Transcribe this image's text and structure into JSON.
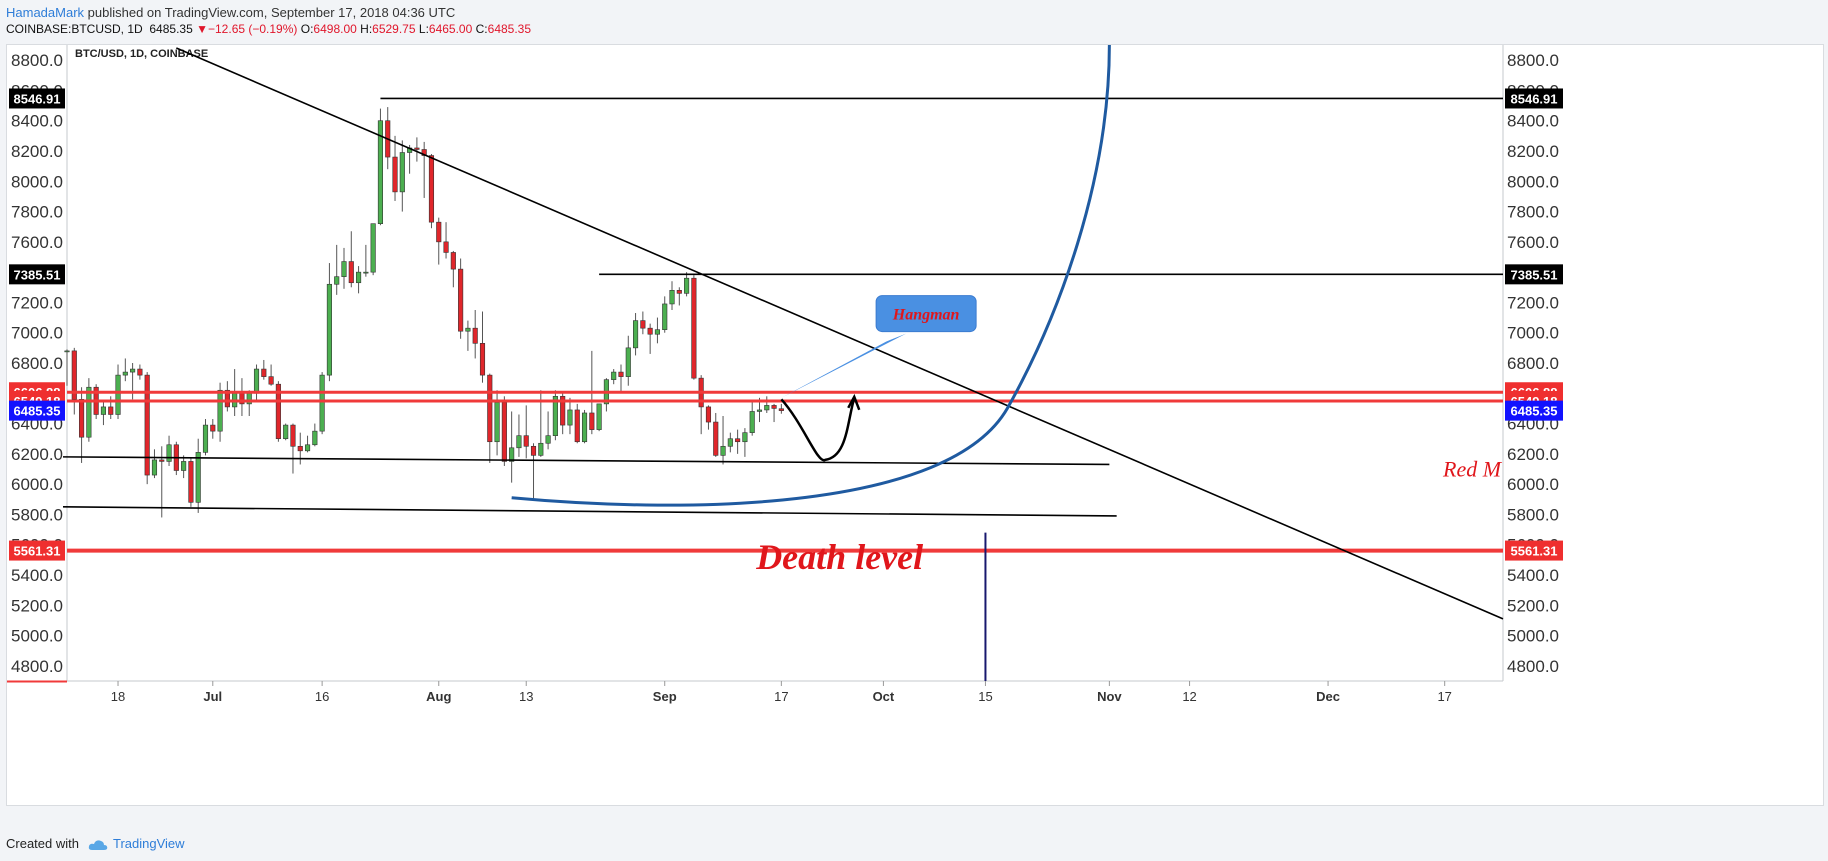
{
  "header": {
    "author": "HamadaMark",
    "published_text": " published on TradingView.com, September 17, 2018 04:36 UTC",
    "symbol": "COINBASE:BTCUSD, 1D",
    "last": "6485.35",
    "arrow": "▼",
    "change": "−12.65 (−0.19%)",
    "o_label": "O:",
    "o_value": "6498.00",
    "h_label": "H:",
    "h_value": "6529.75",
    "l_label": "L:",
    "l_value": "6465.00",
    "c_label": "C:",
    "c_value": "6485.35"
  },
  "footer": {
    "created_with": "Created with",
    "brand": "TradingView"
  },
  "chart_data": {
    "type": "candlestick",
    "title": "BTC/USD, 1D, COINBASE",
    "ylim": [
      4700,
      8900
    ],
    "y_ticks": [
      4800,
      5000,
      5200,
      5400,
      5600,
      5800,
      6000,
      6200,
      6400,
      6600,
      6800,
      7000,
      7200,
      7400,
      7600,
      7800,
      8000,
      8200,
      8400,
      8600,
      8800
    ],
    "y_tick_suffix": ".0",
    "x_start": "2018-06-11",
    "x_end": "2018-12-25",
    "x_ticks": [
      {
        "date": "2018-06-18",
        "label": "18"
      },
      {
        "date": "2018-07-01",
        "label": "Jul",
        "bold": true
      },
      {
        "date": "2018-07-16",
        "label": "16"
      },
      {
        "date": "2018-08-01",
        "label": "Aug",
        "bold": true
      },
      {
        "date": "2018-08-13",
        "label": "13"
      },
      {
        "date": "2018-09-01",
        "label": "Sep",
        "bold": true
      },
      {
        "date": "2018-09-17",
        "label": "17"
      },
      {
        "date": "2018-10-01",
        "label": "Oct",
        "bold": true
      },
      {
        "date": "2018-10-15",
        "label": "15"
      },
      {
        "date": "2018-11-01",
        "label": "Nov",
        "bold": true
      },
      {
        "date": "2018-11-12",
        "label": "12"
      },
      {
        "date": "2018-12-01",
        "label": "Dec",
        "bold": true
      },
      {
        "date": "2018-12-17",
        "label": "17"
      }
    ],
    "price_labels": [
      {
        "value": 8546.91,
        "text": "8546.91",
        "color": "#000000"
      },
      {
        "value": 7385.51,
        "text": "7385.51",
        "color": "#000000"
      },
      {
        "value": 6606.88,
        "text": "6606.88",
        "color": "#ef2f2f"
      },
      {
        "value": 6549.18,
        "text": "6549.18",
        "color": "#ef2f2f"
      },
      {
        "value": 6485.35,
        "text": "6485.35",
        "color": "#1212ff"
      },
      {
        "value": 5561.31,
        "text": "5561.31",
        "color": "#ef2f2f"
      }
    ],
    "candles": [
      {
        "d": "2018-06-11",
        "o": 6880,
        "h": 6890,
        "l": 6650,
        "c": 6880
      },
      {
        "d": "2018-06-12",
        "o": 6880,
        "h": 6900,
        "l": 6460,
        "c": 6560
      },
      {
        "d": "2018-06-13",
        "o": 6560,
        "h": 6640,
        "l": 6140,
        "c": 6310
      },
      {
        "d": "2018-06-14",
        "o": 6310,
        "h": 6700,
        "l": 6280,
        "c": 6640
      },
      {
        "d": "2018-06-15",
        "o": 6640,
        "h": 6660,
        "l": 6430,
        "c": 6460
      },
      {
        "d": "2018-06-16",
        "o": 6460,
        "h": 6540,
        "l": 6390,
        "c": 6510
      },
      {
        "d": "2018-06-17",
        "o": 6510,
        "h": 6580,
        "l": 6430,
        "c": 6460
      },
      {
        "d": "2018-06-18",
        "o": 6460,
        "h": 6790,
        "l": 6430,
        "c": 6720
      },
      {
        "d": "2018-06-19",
        "o": 6720,
        "h": 6830,
        "l": 6680,
        "c": 6740
      },
      {
        "d": "2018-06-20",
        "o": 6740,
        "h": 6800,
        "l": 6560,
        "c": 6760
      },
      {
        "d": "2018-06-21",
        "o": 6760,
        "h": 6790,
        "l": 6690,
        "c": 6720
      },
      {
        "d": "2018-06-22",
        "o": 6720,
        "h": 6740,
        "l": 6000,
        "c": 6060
      },
      {
        "d": "2018-06-23",
        "o": 6060,
        "h": 6230,
        "l": 6040,
        "c": 6160
      },
      {
        "d": "2018-06-24",
        "o": 6160,
        "h": 6250,
        "l": 5780,
        "c": 6150
      },
      {
        "d": "2018-06-25",
        "o": 6150,
        "h": 6320,
        "l": 6120,
        "c": 6260
      },
      {
        "d": "2018-06-26",
        "o": 6260,
        "h": 6280,
        "l": 6060,
        "c": 6090
      },
      {
        "d": "2018-06-27",
        "o": 6090,
        "h": 6190,
        "l": 6040,
        "c": 6150
      },
      {
        "d": "2018-06-28",
        "o": 6150,
        "h": 6170,
        "l": 5850,
        "c": 5880
      },
      {
        "d": "2018-06-29",
        "o": 5880,
        "h": 6300,
        "l": 5810,
        "c": 6210
      },
      {
        "d": "2018-06-30",
        "o": 6210,
        "h": 6430,
        "l": 6190,
        "c": 6390
      },
      {
        "d": "2018-07-01",
        "o": 6390,
        "h": 6430,
        "l": 6300,
        "c": 6350
      },
      {
        "d": "2018-07-02",
        "o": 6350,
        "h": 6670,
        "l": 6280,
        "c": 6620
      },
      {
        "d": "2018-07-03",
        "o": 6620,
        "h": 6680,
        "l": 6480,
        "c": 6510
      },
      {
        "d": "2018-07-04",
        "o": 6510,
        "h": 6760,
        "l": 6450,
        "c": 6600
      },
      {
        "d": "2018-07-05",
        "o": 6600,
        "h": 6700,
        "l": 6450,
        "c": 6530
      },
      {
        "d": "2018-07-06",
        "o": 6530,
        "h": 6620,
        "l": 6450,
        "c": 6600
      },
      {
        "d": "2018-07-07",
        "o": 6600,
        "h": 6790,
        "l": 6540,
        "c": 6760
      },
      {
        "d": "2018-07-08",
        "o": 6760,
        "h": 6820,
        "l": 6690,
        "c": 6710
      },
      {
        "d": "2018-07-09",
        "o": 6710,
        "h": 6790,
        "l": 6650,
        "c": 6660
      },
      {
        "d": "2018-07-10",
        "o": 6660,
        "h": 6680,
        "l": 6280,
        "c": 6300
      },
      {
        "d": "2018-07-11",
        "o": 6300,
        "h": 6400,
        "l": 6290,
        "c": 6390
      },
      {
        "d": "2018-07-12",
        "o": 6390,
        "h": 6400,
        "l": 6070,
        "c": 6250
      },
      {
        "d": "2018-07-13",
        "o": 6250,
        "h": 6340,
        "l": 6130,
        "c": 6220
      },
      {
        "d": "2018-07-14",
        "o": 6220,
        "h": 6320,
        "l": 6210,
        "c": 6260
      },
      {
        "d": "2018-07-15",
        "o": 6260,
        "h": 6400,
        "l": 6250,
        "c": 6350
      },
      {
        "d": "2018-07-16",
        "o": 6350,
        "h": 6740,
        "l": 6330,
        "c": 6720
      },
      {
        "d": "2018-07-17",
        "o": 6720,
        "h": 7460,
        "l": 6680,
        "c": 7320
      },
      {
        "d": "2018-07-18",
        "o": 7320,
        "h": 7580,
        "l": 7250,
        "c": 7370
      },
      {
        "d": "2018-07-19",
        "o": 7370,
        "h": 7560,
        "l": 7290,
        "c": 7470
      },
      {
        "d": "2018-07-20",
        "o": 7470,
        "h": 7670,
        "l": 7300,
        "c": 7330
      },
      {
        "d": "2018-07-21",
        "o": 7330,
        "h": 7440,
        "l": 7260,
        "c": 7400
      },
      {
        "d": "2018-07-22",
        "o": 7400,
        "h": 7580,
        "l": 7370,
        "c": 7400
      },
      {
        "d": "2018-07-23",
        "o": 7400,
        "h": 7720,
        "l": 7380,
        "c": 7720
      },
      {
        "d": "2018-07-24",
        "o": 7720,
        "h": 8480,
        "l": 7710,
        "c": 8400
      },
      {
        "d": "2018-07-25",
        "o": 8400,
        "h": 8490,
        "l": 8080,
        "c": 8160
      },
      {
        "d": "2018-07-26",
        "o": 8160,
        "h": 8300,
        "l": 7870,
        "c": 7930
      },
      {
        "d": "2018-07-27",
        "o": 7930,
        "h": 8270,
        "l": 7800,
        "c": 8190
      },
      {
        "d": "2018-07-28",
        "o": 8190,
        "h": 8240,
        "l": 8050,
        "c": 8220
      },
      {
        "d": "2018-07-29",
        "o": 8220,
        "h": 8290,
        "l": 8130,
        "c": 8210
      },
      {
        "d": "2018-07-30",
        "o": 8210,
        "h": 8260,
        "l": 7890,
        "c": 8170
      },
      {
        "d": "2018-07-31",
        "o": 8170,
        "h": 8180,
        "l": 7690,
        "c": 7730
      },
      {
        "d": "2018-08-01",
        "o": 7730,
        "h": 7760,
        "l": 7450,
        "c": 7600
      },
      {
        "d": "2018-08-02",
        "o": 7600,
        "h": 7730,
        "l": 7490,
        "c": 7530
      },
      {
        "d": "2018-08-03",
        "o": 7530,
        "h": 7540,
        "l": 7300,
        "c": 7420
      },
      {
        "d": "2018-08-04",
        "o": 7420,
        "h": 7490,
        "l": 6960,
        "c": 7010
      },
      {
        "d": "2018-08-05",
        "o": 7010,
        "h": 7080,
        "l": 6880,
        "c": 7030
      },
      {
        "d": "2018-08-06",
        "o": 7030,
        "h": 7150,
        "l": 6830,
        "c": 6930
      },
      {
        "d": "2018-08-07",
        "o": 6930,
        "h": 7140,
        "l": 6670,
        "c": 6720
      },
      {
        "d": "2018-08-08",
        "o": 6720,
        "h": 6730,
        "l": 6140,
        "c": 6280
      },
      {
        "d": "2018-08-09",
        "o": 6280,
        "h": 6620,
        "l": 6190,
        "c": 6540
      },
      {
        "d": "2018-08-10",
        "o": 6540,
        "h": 6580,
        "l": 6120,
        "c": 6150
      },
      {
        "d": "2018-08-11",
        "o": 6150,
        "h": 6480,
        "l": 6010,
        "c": 6240
      },
      {
        "d": "2018-08-12",
        "o": 6240,
        "h": 6460,
        "l": 6180,
        "c": 6320
      },
      {
        "d": "2018-08-13",
        "o": 6320,
        "h": 6520,
        "l": 6170,
        "c": 6250
      },
      {
        "d": "2018-08-14",
        "o": 6250,
        "h": 6270,
        "l": 5890,
        "c": 6190
      },
      {
        "d": "2018-08-15",
        "o": 6190,
        "h": 6620,
        "l": 6180,
        "c": 6270
      },
      {
        "d": "2018-08-16",
        "o": 6270,
        "h": 6480,
        "l": 6230,
        "c": 6320
      },
      {
        "d": "2018-08-17",
        "o": 6320,
        "h": 6620,
        "l": 6290,
        "c": 6580
      },
      {
        "d": "2018-08-18",
        "o": 6580,
        "h": 6610,
        "l": 6330,
        "c": 6390
      },
      {
        "d": "2018-08-19",
        "o": 6390,
        "h": 6570,
        "l": 6330,
        "c": 6490
      },
      {
        "d": "2018-08-20",
        "o": 6490,
        "h": 6530,
        "l": 6270,
        "c": 6280
      },
      {
        "d": "2018-08-21",
        "o": 6280,
        "h": 6490,
        "l": 6270,
        "c": 6470
      },
      {
        "d": "2018-08-22",
        "o": 6470,
        "h": 6880,
        "l": 6330,
        "c": 6360
      },
      {
        "d": "2018-08-23",
        "o": 6360,
        "h": 6530,
        "l": 6350,
        "c": 6530
      },
      {
        "d": "2018-08-24",
        "o": 6530,
        "h": 6700,
        "l": 6480,
        "c": 6690
      },
      {
        "d": "2018-08-25",
        "o": 6690,
        "h": 6760,
        "l": 6660,
        "c": 6740
      },
      {
        "d": "2018-08-26",
        "o": 6740,
        "h": 6790,
        "l": 6600,
        "c": 6710
      },
      {
        "d": "2018-08-27",
        "o": 6710,
        "h": 6980,
        "l": 6650,
        "c": 6900
      },
      {
        "d": "2018-08-28",
        "o": 6900,
        "h": 7130,
        "l": 6850,
        "c": 7080
      },
      {
        "d": "2018-08-29",
        "o": 7080,
        "h": 7140,
        "l": 6990,
        "c": 7030
      },
      {
        "d": "2018-08-30",
        "o": 7030,
        "h": 7060,
        "l": 6860,
        "c": 6990
      },
      {
        "d": "2018-08-31",
        "o": 6990,
        "h": 7100,
        "l": 6930,
        "c": 7020
      },
      {
        "d": "2018-09-01",
        "o": 7020,
        "h": 7240,
        "l": 7000,
        "c": 7190
      },
      {
        "d": "2018-09-02",
        "o": 7190,
        "h": 7340,
        "l": 7150,
        "c": 7280
      },
      {
        "d": "2018-09-03",
        "o": 7280,
        "h": 7300,
        "l": 7180,
        "c": 7260
      },
      {
        "d": "2018-09-04",
        "o": 7260,
        "h": 7400,
        "l": 7240,
        "c": 7360
      },
      {
        "d": "2018-09-05",
        "o": 7360,
        "h": 7380,
        "l": 6690,
        "c": 6700
      },
      {
        "d": "2018-09-06",
        "o": 6700,
        "h": 6720,
        "l": 6330,
        "c": 6510
      },
      {
        "d": "2018-09-07",
        "o": 6510,
        "h": 6520,
        "l": 6360,
        "c": 6410
      },
      {
        "d": "2018-09-08",
        "o": 6410,
        "h": 6470,
        "l": 6180,
        "c": 6190
      },
      {
        "d": "2018-09-09",
        "o": 6190,
        "h": 6450,
        "l": 6130,
        "c": 6250
      },
      {
        "d": "2018-09-10",
        "o": 6250,
        "h": 6340,
        "l": 6210,
        "c": 6300
      },
      {
        "d": "2018-09-11",
        "o": 6300,
        "h": 6360,
        "l": 6200,
        "c": 6280
      },
      {
        "d": "2018-09-12",
        "o": 6280,
        "h": 6370,
        "l": 6180,
        "c": 6340
      },
      {
        "d": "2018-09-13",
        "o": 6340,
        "h": 6540,
        "l": 6320,
        "c": 6480
      },
      {
        "d": "2018-09-14",
        "o": 6480,
        "h": 6570,
        "l": 6410,
        "c": 6490
      },
      {
        "d": "2018-09-15",
        "o": 6490,
        "h": 6580,
        "l": 6470,
        "c": 6520
      },
      {
        "d": "2018-09-16",
        "o": 6520,
        "h": 6530,
        "l": 6410,
        "c": 6500
      },
      {
        "d": "2018-09-17",
        "o": 6498,
        "h": 6529.75,
        "l": 6465,
        "c": 6485.35
      }
    ]
  },
  "annotations": {
    "hangman": "Hangman",
    "death_level": "Death level",
    "red_m": "Red M"
  }
}
